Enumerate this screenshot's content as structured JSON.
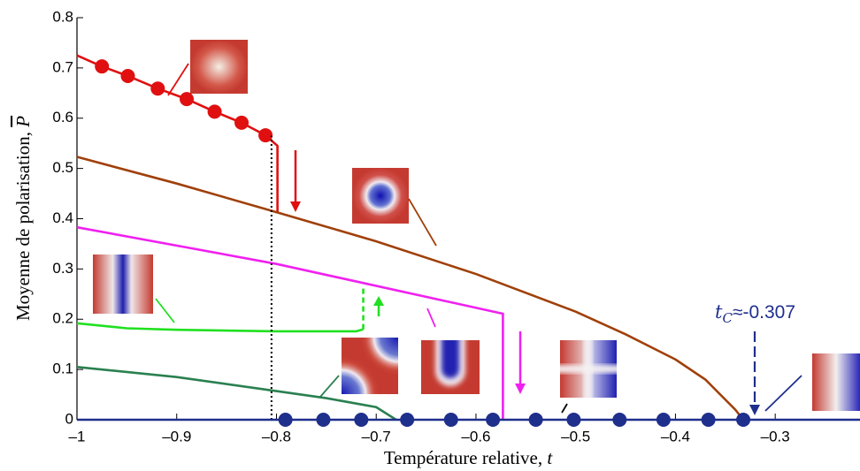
{
  "chart_data": {
    "type": "line",
    "x_label": "Température relative,",
    "x_label_symbol": "t",
    "y_label": "Moyenne de polarisation,",
    "y_label_symbol": "P",
    "xlim": [
      -1,
      -0.215
    ],
    "ylim": [
      0,
      0.8
    ],
    "xticks": [
      {
        "value": -1,
        "label": "–1"
      },
      {
        "value": -0.9,
        "label": "–0.9"
      },
      {
        "value": -0.8,
        "label": "–0.8"
      },
      {
        "value": -0.7,
        "label": "–0.7"
      },
      {
        "value": -0.6,
        "label": "–0.6"
      },
      {
        "value": -0.5,
        "label": "–0.5"
      },
      {
        "value": -0.4,
        "label": "–0.4"
      },
      {
        "value": -0.3,
        "label": "–0.3"
      }
    ],
    "yticks": [
      0,
      0.1,
      0.2,
      0.3,
      0.4,
      0.5,
      0.6,
      0.7,
      0.8
    ],
    "annotation": {
      "symbol": "t",
      "subscript": "C",
      "text": "≈-0.307",
      "color": "#1f2f8c"
    },
    "series": [
      {
        "kind": "line",
        "style": "solid",
        "color": "#e01010",
        "x": [
          -1,
          -0.975,
          -0.949,
          -0.919,
          -0.89,
          -0.862,
          -0.835,
          -0.811,
          -0.799,
          -0.799
        ],
        "values": [
          0.725,
          0.703,
          0.684,
          0.659,
          0.638,
          0.613,
          0.591,
          0.566,
          0.545,
          0.413
        ]
      },
      {
        "kind": "markers",
        "color": "#e01010",
        "x": [
          -0.975,
          -0.949,
          -0.919,
          -0.89,
          -0.862,
          -0.835,
          -0.811
        ],
        "values": [
          0.703,
          0.684,
          0.659,
          0.638,
          0.613,
          0.591,
          0.566
        ]
      },
      {
        "kind": "line",
        "style": "solid",
        "color": "#a0400a",
        "x": [
          -1,
          -0.9,
          -0.8,
          -0.7,
          -0.6,
          -0.5,
          -0.45,
          -0.4,
          -0.37,
          -0.35,
          -0.34,
          -0.332
        ],
        "values": [
          0.523,
          0.47,
          0.413,
          0.355,
          0.29,
          0.215,
          0.17,
          0.12,
          0.08,
          0.04,
          0.02,
          0
        ]
      },
      {
        "kind": "line",
        "style": "solid",
        "color": "#f020f0",
        "x": [
          -1,
          -0.8,
          -0.573,
          -0.573
        ],
        "values": [
          0.383,
          0.31,
          0.211,
          0
        ]
      },
      {
        "kind": "line",
        "style": "solid",
        "color": "#20e020",
        "x": [
          -1,
          -0.95,
          -0.9,
          -0.8,
          -0.72,
          -0.713
        ],
        "values": [
          0.192,
          0.182,
          0.179,
          0.176,
          0.176,
          0.18
        ]
      },
      {
        "kind": "line",
        "style": "dashed",
        "color": "#20e020",
        "x": [
          -0.713,
          -0.713
        ],
        "values": [
          0.18,
          0.264
        ]
      },
      {
        "kind": "line",
        "style": "solid",
        "color": "#2a8050",
        "x": [
          -1,
          -0.9,
          -0.8,
          -0.75,
          -0.7,
          -0.68
        ],
        "values": [
          0.105,
          0.085,
          0.057,
          0.043,
          0.025,
          0
        ]
      },
      {
        "kind": "line",
        "style": "dotted",
        "color": "#000000",
        "x": [
          -0.805,
          -0.805
        ],
        "values": [
          0,
          0.565
        ]
      },
      {
        "kind": "line",
        "style": "solid",
        "color": "#1f2f8c",
        "x": [
          -1,
          -0.215
        ],
        "values": [
          0,
          0
        ]
      },
      {
        "kind": "markers",
        "color": "#1f2f8c",
        "x": [
          -0.791,
          -0.753,
          -0.715,
          -0.669,
          -0.625,
          -0.583,
          -0.54,
          -0.502,
          -0.456,
          -0.412,
          -0.367,
          -0.332
        ],
        "values": [
          0,
          0,
          0,
          0,
          0,
          0,
          0,
          0,
          0,
          0,
          0,
          0
        ]
      }
    ]
  }
}
